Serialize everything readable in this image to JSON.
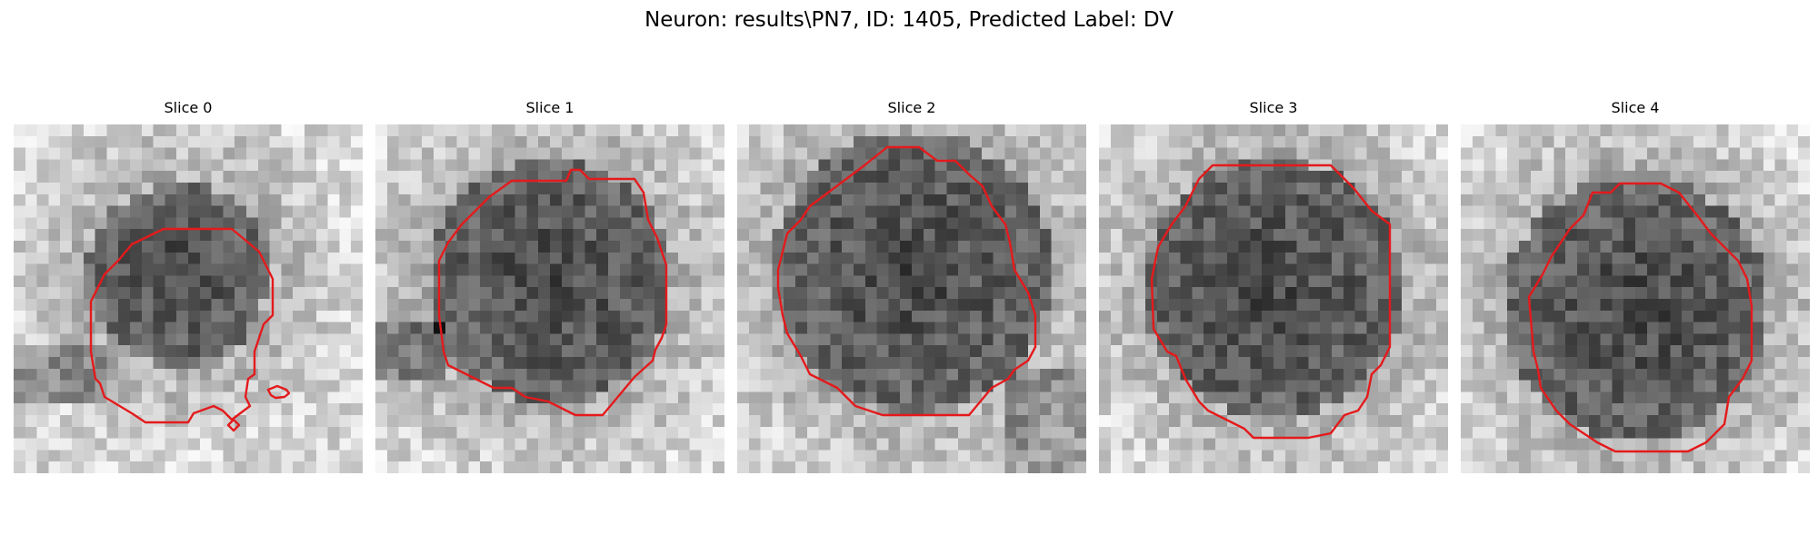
{
  "figure": {
    "title": "Neuron: results\\PN7, ID: 1405, Predicted Label: DV"
  },
  "colors": {
    "contour": "#e41a1c",
    "background": "#ffffff",
    "image_colormap": "gray"
  },
  "panels": [
    {
      "title": "Slice 0"
    },
    {
      "title": "Slice 1"
    },
    {
      "title": "Slice 2"
    },
    {
      "title": "Slice 3"
    },
    {
      "title": "Slice 4"
    }
  ]
}
